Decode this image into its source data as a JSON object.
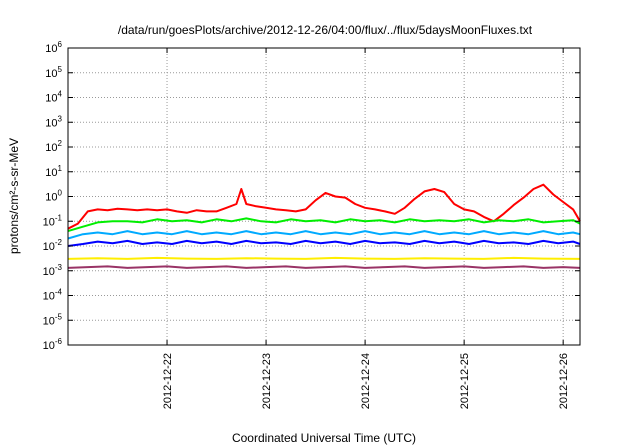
{
  "chart_data": {
    "type": "line",
    "title": "/data/run/goesPlots/archive/2012-12-26/04:00/flux/../flux/5daysMoonFluxes.txt",
    "xlabel": "Coordinated Universal Time (UTC)",
    "ylabel": "protons/cm²-s-sr-MeV",
    "yscale": "log",
    "ylim": [
      1e-06,
      1000000.0
    ],
    "xlim": [
      0,
      5.17
    ],
    "grid": true,
    "legend": "none",
    "y_ticks": [
      {
        "base": "10",
        "exp": "6"
      },
      {
        "base": "10",
        "exp": "5"
      },
      {
        "base": "10",
        "exp": "4"
      },
      {
        "base": "10",
        "exp": "3"
      },
      {
        "base": "10",
        "exp": "2"
      },
      {
        "base": "10",
        "exp": "1"
      },
      {
        "base": "10",
        "exp": "0"
      },
      {
        "base": "10",
        "exp": "-1"
      },
      {
        "base": "10",
        "exp": "-2"
      },
      {
        "base": "10",
        "exp": "-3"
      },
      {
        "base": "10",
        "exp": "-4"
      },
      {
        "base": "10",
        "exp": "-5"
      },
      {
        "base": "10",
        "exp": "-6"
      }
    ],
    "x_ticks": [
      {
        "label": "2012-12-22",
        "value": 1
      },
      {
        "label": "2012-12-23",
        "value": 2
      },
      {
        "label": "2012-12-24",
        "value": 3
      },
      {
        "label": "2012-12-25",
        "value": 4
      },
      {
        "label": "2012-12-26",
        "value": 5
      }
    ],
    "series": [
      {
        "color": "#ff0000",
        "x": [
          0,
          0.1,
          0.2,
          0.3,
          0.4,
          0.5,
          0.6,
          0.7,
          0.8,
          0.9,
          1,
          1.1,
          1.2,
          1.3,
          1.4,
          1.5,
          1.6,
          1.7,
          1.75,
          1.8,
          1.9,
          2,
          2.1,
          2.2,
          2.3,
          2.4,
          2.5,
          2.6,
          2.7,
          2.8,
          2.9,
          3,
          3.1,
          3.2,
          3.3,
          3.4,
          3.5,
          3.6,
          3.7,
          3.8,
          3.9,
          4,
          4.1,
          4.2,
          4.3,
          4.4,
          4.5,
          4.6,
          4.7,
          4.8,
          4.9,
          5,
          5.1,
          5.17
        ],
        "y": [
          0.05,
          0.08,
          0.25,
          0.3,
          0.28,
          0.32,
          0.3,
          0.28,
          0.3,
          0.28,
          0.3,
          0.25,
          0.22,
          0.28,
          0.25,
          0.25,
          0.35,
          0.5,
          2.0,
          0.5,
          0.4,
          0.35,
          0.3,
          0.28,
          0.25,
          0.3,
          0.7,
          1.4,
          1.0,
          0.9,
          0.5,
          0.35,
          0.3,
          0.25,
          0.2,
          0.35,
          0.8,
          1.6,
          2.0,
          1.5,
          0.5,
          0.3,
          0.25,
          0.15,
          0.1,
          0.2,
          0.45,
          0.9,
          2.0,
          3.0,
          1.2,
          0.6,
          0.3,
          0.1
        ]
      },
      {
        "color": "#00ee00",
        "x": [
          0,
          0.15,
          0.3,
          0.45,
          0.6,
          0.75,
          0.9,
          1.05,
          1.2,
          1.35,
          1.5,
          1.65,
          1.8,
          1.95,
          2.1,
          2.25,
          2.4,
          2.55,
          2.7,
          2.85,
          3,
          3.15,
          3.3,
          3.45,
          3.6,
          3.75,
          3.9,
          4.05,
          4.2,
          4.35,
          4.5,
          4.65,
          4.8,
          4.95,
          5.1,
          5.17
        ],
        "y": [
          0.04,
          0.06,
          0.09,
          0.1,
          0.1,
          0.09,
          0.12,
          0.1,
          0.11,
          0.09,
          0.12,
          0.1,
          0.13,
          0.1,
          0.09,
          0.12,
          0.1,
          0.11,
          0.09,
          0.12,
          0.1,
          0.11,
          0.09,
          0.12,
          0.1,
          0.11,
          0.1,
          0.12,
          0.09,
          0.11,
          0.1,
          0.12,
          0.09,
          0.1,
          0.11,
          0.08
        ]
      },
      {
        "color": "#00aaff",
        "x": [
          0,
          0.15,
          0.3,
          0.45,
          0.6,
          0.75,
          0.9,
          1.05,
          1.2,
          1.35,
          1.5,
          1.65,
          1.8,
          1.95,
          2.1,
          2.25,
          2.4,
          2.55,
          2.7,
          2.85,
          3,
          3.15,
          3.3,
          3.45,
          3.6,
          3.75,
          3.9,
          4.05,
          4.2,
          4.35,
          4.5,
          4.65,
          4.8,
          4.95,
          5.1,
          5.17
        ],
        "y": [
          0.02,
          0.03,
          0.035,
          0.03,
          0.04,
          0.03,
          0.035,
          0.03,
          0.04,
          0.03,
          0.035,
          0.03,
          0.04,
          0.03,
          0.035,
          0.03,
          0.04,
          0.03,
          0.035,
          0.03,
          0.04,
          0.03,
          0.035,
          0.03,
          0.04,
          0.03,
          0.035,
          0.03,
          0.04,
          0.03,
          0.035,
          0.03,
          0.04,
          0.03,
          0.035,
          0.03
        ]
      },
      {
        "color": "#0000ff",
        "x": [
          0,
          0.15,
          0.3,
          0.45,
          0.6,
          0.75,
          0.9,
          1.05,
          1.2,
          1.35,
          1.5,
          1.65,
          1.8,
          1.95,
          2.1,
          2.25,
          2.4,
          2.55,
          2.7,
          2.85,
          3,
          3.15,
          3.3,
          3.45,
          3.6,
          3.75,
          3.9,
          4.05,
          4.2,
          4.35,
          4.5,
          4.65,
          4.8,
          4.95,
          5.1,
          5.17
        ],
        "y": [
          0.01,
          0.012,
          0.015,
          0.013,
          0.016,
          0.012,
          0.014,
          0.012,
          0.016,
          0.013,
          0.015,
          0.012,
          0.016,
          0.013,
          0.014,
          0.012,
          0.016,
          0.013,
          0.015,
          0.012,
          0.016,
          0.013,
          0.014,
          0.012,
          0.016,
          0.013,
          0.015,
          0.012,
          0.016,
          0.013,
          0.014,
          0.012,
          0.016,
          0.013,
          0.015,
          0.012
        ]
      },
      {
        "color": "#ffee00",
        "x": [
          0,
          0.3,
          0.6,
          0.9,
          1.2,
          1.5,
          1.8,
          2.1,
          2.4,
          2.7,
          3,
          3.3,
          3.6,
          3.9,
          4.2,
          4.5,
          4.8,
          5.17
        ],
        "y": [
          0.003,
          0.0032,
          0.003,
          0.0033,
          0.0031,
          0.003,
          0.0032,
          0.0031,
          0.003,
          0.0033,
          0.0031,
          0.003,
          0.0032,
          0.0031,
          0.003,
          0.0033,
          0.0031,
          0.003
        ]
      },
      {
        "color": "#993366",
        "x": [
          0,
          0.2,
          0.4,
          0.6,
          0.8,
          1,
          1.2,
          1.4,
          1.6,
          1.8,
          2,
          2.2,
          2.4,
          2.6,
          2.8,
          3,
          3.2,
          3.4,
          3.6,
          3.8,
          4,
          4.2,
          4.4,
          4.6,
          4.8,
          5,
          5.17
        ],
        "y": [
          0.0013,
          0.0014,
          0.0015,
          0.0013,
          0.0014,
          0.0015,
          0.0013,
          0.0014,
          0.0015,
          0.0013,
          0.0014,
          0.0015,
          0.0013,
          0.0014,
          0.0015,
          0.0013,
          0.0014,
          0.0015,
          0.0013,
          0.0014,
          0.0015,
          0.0013,
          0.0014,
          0.0015,
          0.0013,
          0.0014,
          0.0013
        ]
      }
    ]
  }
}
